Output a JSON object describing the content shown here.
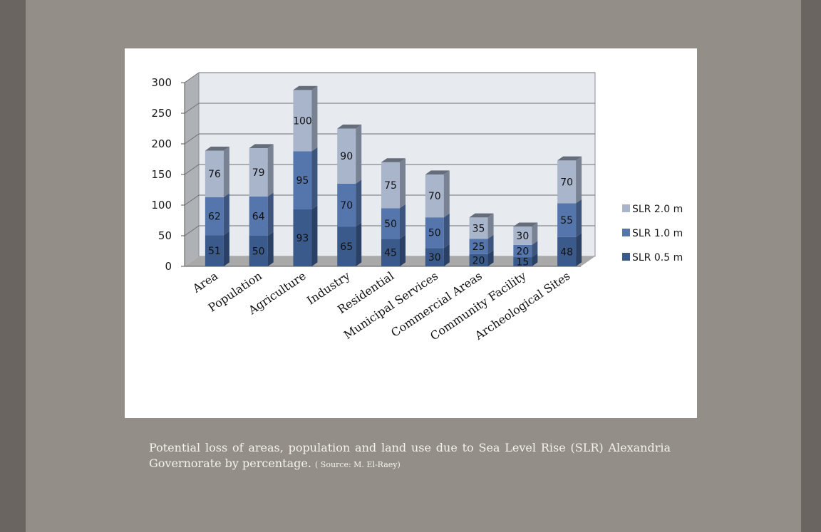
{
  "caption": {
    "text": "Potential loss of areas, population and land use due to Sea Level Rise (SLR) Alexandria Governorate by percentage.",
    "source": "( Source: M. El-Raey)"
  },
  "colors": {
    "slr_0_5": "#3a5a8c",
    "slr_1_0": "#5576ad",
    "slr_2_0": "#a8b5cb",
    "plot_background": "#e7ebef",
    "slide_background": "#938e88"
  },
  "chart_data": {
    "type": "bar",
    "stacked": true,
    "style": "3d-stacked-column",
    "categories": [
      "Area",
      "Population",
      "Agriculture",
      "Industry",
      "Residential",
      "Municipal Services",
      "Commercial Areas",
      "Community Facility",
      "Archeological Sites"
    ],
    "series": [
      {
        "name": "SLR 0.5 m",
        "values": [
          51,
          50,
          93,
          65,
          45,
          30,
          20,
          15,
          48
        ]
      },
      {
        "name": "SLR 1.0 m",
        "values": [
          62,
          64,
          95,
          70,
          50,
          50,
          25,
          20,
          55
        ]
      },
      {
        "name": "SLR 2.0 m",
        "values": [
          76,
          79,
          100,
          90,
          75,
          70,
          35,
          30,
          70
        ]
      }
    ],
    "title": "",
    "xlabel": "",
    "ylabel": "",
    "ylim": [
      0,
      300
    ],
    "yticks": [
      0,
      50,
      100,
      150,
      200,
      250,
      300
    ],
    "grid": true,
    "legend_position": "right"
  }
}
